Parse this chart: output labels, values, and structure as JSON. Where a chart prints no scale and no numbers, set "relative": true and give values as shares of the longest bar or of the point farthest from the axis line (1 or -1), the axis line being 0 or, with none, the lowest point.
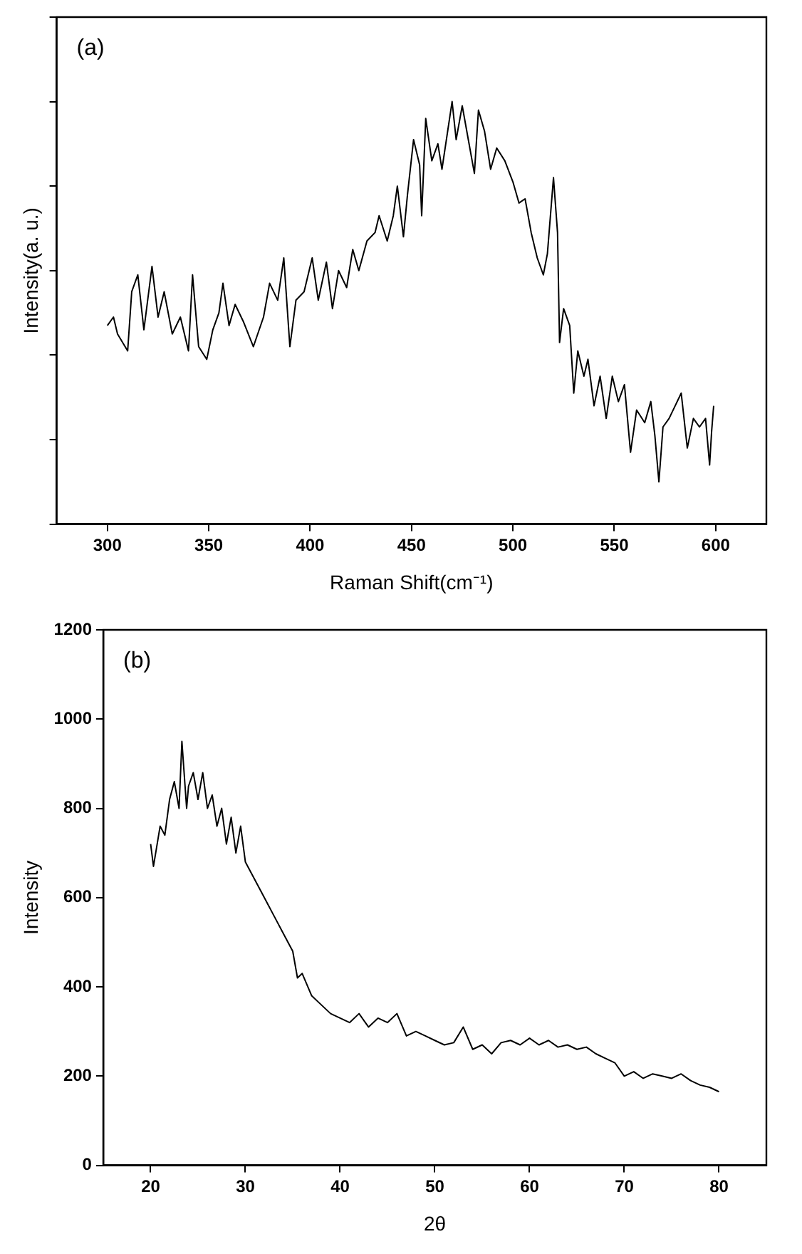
{
  "chart_data": [
    {
      "type": "line",
      "relative": true,
      "xlabel": "Raman Shift(cm⁻¹)",
      "ylabel": "Intensity(a. u.)",
      "annotations": [
        "(a)"
      ],
      "xlim": [
        275,
        625
      ],
      "xticks": [
        300,
        350,
        400,
        450,
        500,
        550,
        600
      ],
      "grid": false,
      "legend": false,
      "marker": "none",
      "tick_labels": "x",
      "series": [
        {
          "color": "#000000",
          "x": [
            300,
            303,
            305,
            310,
            312,
            315,
            318,
            322,
            325,
            328,
            332,
            336,
            340,
            342,
            345,
            349,
            352,
            355,
            357,
            360,
            363,
            367,
            372,
            377,
            380,
            384,
            387,
            390,
            393,
            397,
            401,
            404,
            408,
            411,
            414,
            418,
            421,
            424,
            428,
            432,
            434,
            438,
            441,
            443,
            446,
            448,
            451,
            454,
            455,
            457,
            460,
            463,
            465,
            470,
            472,
            475,
            478,
            481,
            483,
            486,
            489,
            492,
            496,
            500,
            503,
            506,
            509,
            512,
            515,
            517,
            520,
            522,
            523,
            525,
            528,
            530,
            532,
            535,
            537,
            540,
            543,
            546,
            549,
            552,
            555,
            558,
            561,
            565,
            568,
            570,
            572,
            574,
            577,
            580,
            583,
            586,
            589,
            592,
            595,
            597,
            598,
            599
          ],
          "values": [
            0.47,
            0.49,
            0.45,
            0.41,
            0.55,
            0.59,
            0.46,
            0.61,
            0.49,
            0.55,
            0.45,
            0.49,
            0.41,
            0.59,
            0.42,
            0.39,
            0.46,
            0.5,
            0.57,
            0.47,
            0.52,
            0.48,
            0.42,
            0.49,
            0.57,
            0.53,
            0.63,
            0.42,
            0.53,
            0.55,
            0.63,
            0.53,
            0.62,
            0.51,
            0.6,
            0.56,
            0.65,
            0.6,
            0.67,
            0.69,
            0.73,
            0.67,
            0.73,
            0.8,
            0.68,
            0.78,
            0.91,
            0.85,
            0.73,
            0.96,
            0.86,
            0.9,
            0.84,
            1,
            0.91,
            0.99,
            0.91,
            0.83,
            0.98,
            0.93,
            0.84,
            0.89,
            0.86,
            0.81,
            0.76,
            0.77,
            0.69,
            0.63,
            0.59,
            0.64,
            0.82,
            0.69,
            0.43,
            0.51,
            0.47,
            0.31,
            0.41,
            0.35,
            0.39,
            0.28,
            0.35,
            0.25,
            0.35,
            0.29,
            0.33,
            0.17,
            0.27,
            0.24,
            0.29,
            0.21,
            0.1,
            0.23,
            0.25,
            0.28,
            0.31,
            0.18,
            0.25,
            0.23,
            0.25,
            0.14,
            0.22,
            0.28
          ]
        }
      ]
    },
    {
      "type": "line",
      "xlabel": "2θ",
      "ylabel": "Intensity",
      "annotations": [
        "(b)"
      ],
      "xlim": [
        15,
        85
      ],
      "xticks": [
        20,
        30,
        40,
        50,
        60,
        70,
        80
      ],
      "ylim": [
        0,
        1200
      ],
      "yticks": [
        0,
        200,
        400,
        600,
        800,
        1000,
        1200
      ],
      "grid": false,
      "legend": false,
      "marker": "none",
      "series": [
        {
          "color": "#000000",
          "x": [
            20,
            20.3,
            21,
            21.5,
            22,
            22.5,
            23,
            23.3,
            23.8,
            24,
            24.5,
            25,
            25.5,
            26,
            26.5,
            27,
            27.5,
            28,
            28.5,
            29,
            29.5,
            30,
            31,
            32,
            33,
            34,
            35,
            35.5,
            36,
            37,
            38,
            39,
            40,
            41,
            42,
            43,
            44,
            45,
            46,
            47,
            48,
            49,
            50,
            51,
            52,
            53,
            54,
            55,
            56,
            57,
            58,
            59,
            60,
            61,
            62,
            63,
            64,
            65,
            66,
            67,
            68,
            69,
            70,
            71,
            72,
            73,
            74,
            75,
            76,
            77,
            78,
            79,
            80
          ],
          "values": [
            720,
            670,
            760,
            740,
            820,
            860,
            800,
            950,
            800,
            850,
            880,
            820,
            880,
            800,
            830,
            760,
            800,
            720,
            780,
            700,
            760,
            680,
            640,
            600,
            560,
            520,
            480,
            420,
            430,
            380,
            360,
            340,
            330,
            320,
            340,
            310,
            330,
            320,
            340,
            290,
            300,
            290,
            280,
            270,
            275,
            310,
            260,
            270,
            250,
            275,
            280,
            270,
            285,
            270,
            280,
            265,
            270,
            260,
            265,
            250,
            240,
            230,
            200,
            210,
            195,
            205,
            200,
            195,
            205,
            190,
            180,
            175,
            165
          ]
        }
      ]
    }
  ]
}
